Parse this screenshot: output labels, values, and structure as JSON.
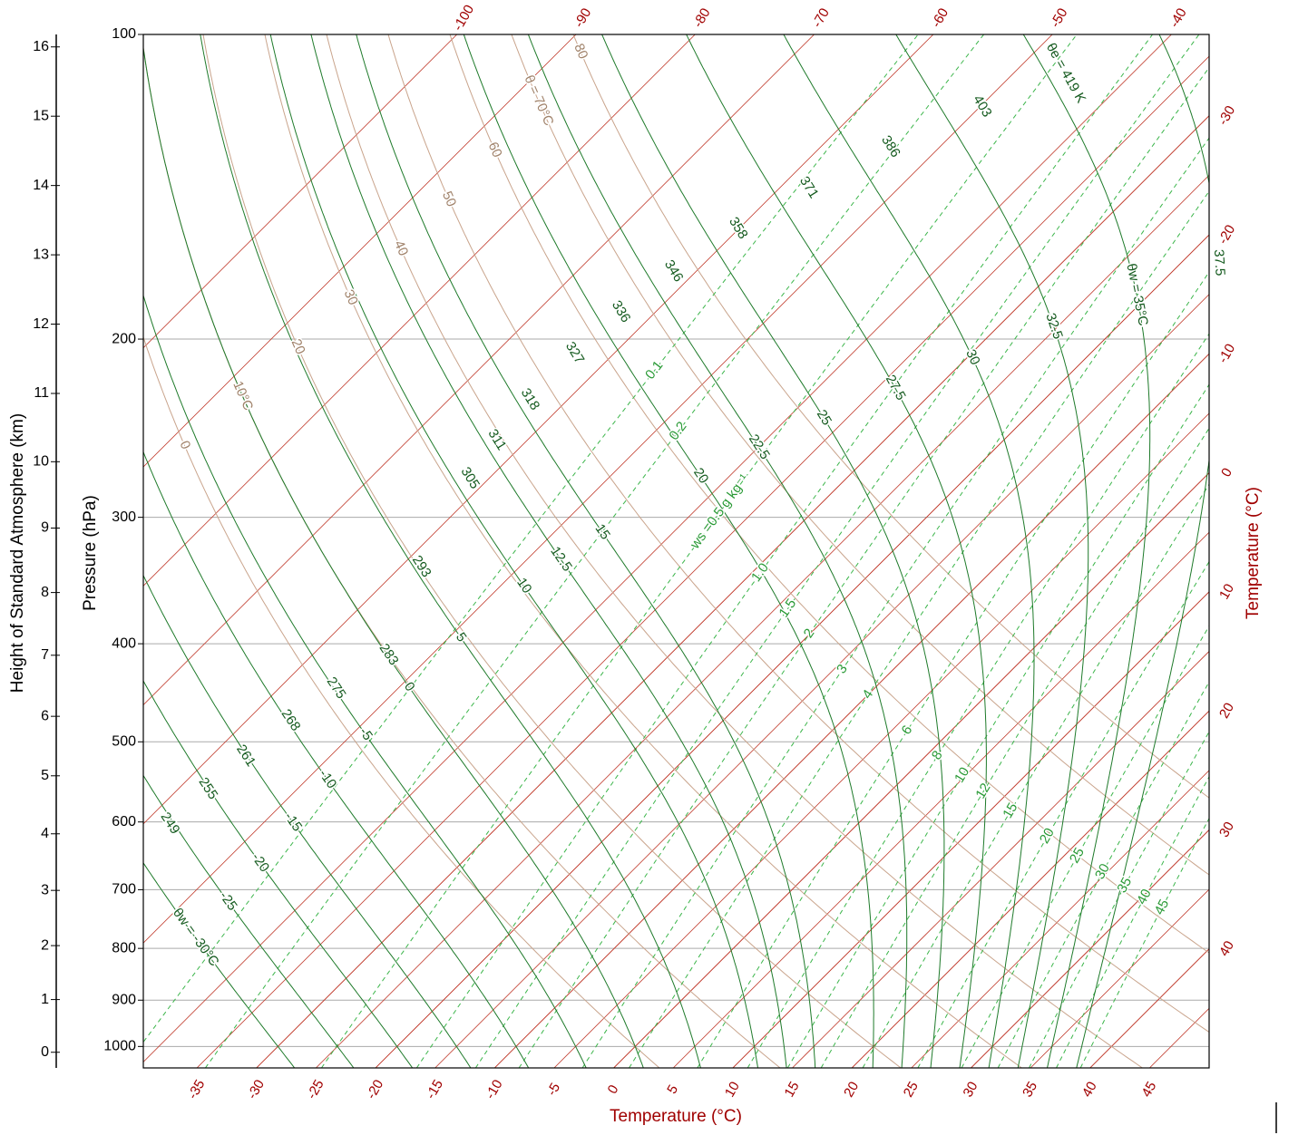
{
  "chart_data": {
    "type": "skew-t",
    "xlabel": "Temperature (°C)",
    "ylabel": "Pressure (hPa)",
    "height_label": "Height of Standard Atmosphere (km)",
    "right_label": "Temperature (°C)",
    "xlim": [
      -39.5,
      50
    ],
    "ylim": [
      1050,
      100
    ],
    "xticks": [
      -35,
      -30,
      -25,
      -20,
      -15,
      -10,
      -5,
      0,
      5,
      10,
      15,
      20,
      25,
      30,
      35,
      40,
      45
    ],
    "yticks": [
      100,
      200,
      300,
      400,
      500,
      600,
      700,
      800,
      900,
      1000
    ],
    "height_ticks": [
      0,
      1,
      2,
      3,
      4,
      5,
      6,
      7,
      8,
      9,
      10,
      11,
      12,
      13,
      14,
      15,
      16
    ],
    "right_ticks": [
      -30,
      -20,
      -10,
      0,
      10,
      20,
      30,
      40
    ],
    "top_ticks": [
      -100,
      -90,
      -80,
      -70,
      -60,
      -50,
      -40
    ],
    "dry_adiabats": [
      0,
      {
        "value": 10,
        "label": "10°C"
      },
      20,
      30,
      40,
      50,
      60,
      {
        "value": 70,
        "label": "θ = 70°C"
      },
      80
    ],
    "moist_adiabats_theta_w": [
      {
        "value": -30,
        "label": "θw = -30°C"
      },
      -25,
      -20,
      -15,
      -10,
      -5,
      0,
      5,
      10,
      12.5,
      15,
      20,
      22.5,
      25,
      27.5,
      30,
      32.5,
      {
        "value": 35,
        "label": "θw = 35°C"
      },
      37.5
    ],
    "moist_adiabats_theta_e": [
      249,
      255,
      261,
      268,
      275,
      283,
      293,
      305,
      311,
      318,
      327,
      336,
      346,
      358,
      371,
      386,
      403,
      {
        "value": 419,
        "label": "θe = 419 K"
      }
    ],
    "mixing_ratios": [
      0.1,
      0.2,
      {
        "value": 0.5,
        "label": "ws =0.5 g kg⁻¹"
      },
      {
        "value": 1,
        "label": "1.0"
      },
      1.5,
      2,
      3,
      4,
      6,
      8,
      10,
      12,
      15,
      20,
      25,
      30,
      35,
      40,
      45
    ],
    "isotherm_color": "#c0392b",
    "dry_adiabat_color": "#c9a48c",
    "moist_adiabat_color": "#1e7a2a",
    "mixing_ratio_color": "#3bb54a",
    "grid": true
  }
}
